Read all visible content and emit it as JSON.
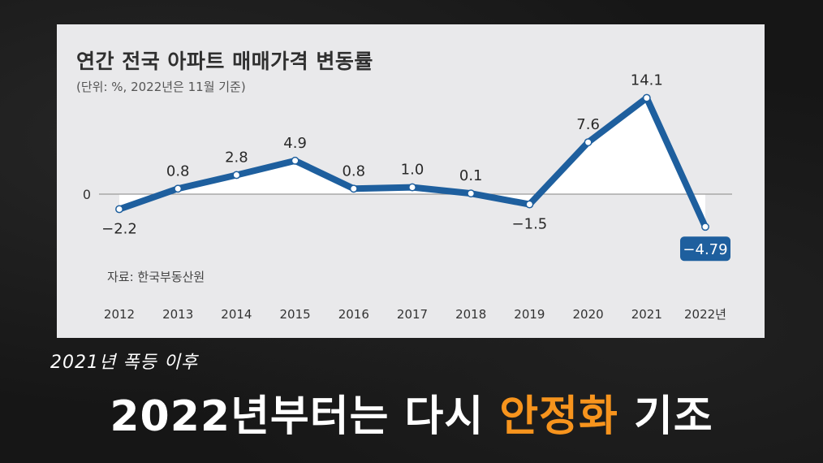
{
  "chart_data": {
    "type": "line",
    "title": "연간 전국 아파트 매매가격 변동률",
    "subtitle": "(단위: %, 2022년은 11월 기준)",
    "source": "자료: 한국부동산원",
    "categories": [
      "2012",
      "2013",
      "2014",
      "2015",
      "2016",
      "2017",
      "2018",
      "2019",
      "2020",
      "2021",
      "2022년"
    ],
    "values": [
      -2.2,
      0.8,
      2.8,
      4.9,
      0.8,
      1.0,
      0.1,
      -1.5,
      7.6,
      14.1,
      -4.79
    ],
    "value_labels": [
      "−2.2",
      "0.8",
      "2.8",
      "4.9",
      "0.8",
      "1.0",
      "0.1",
      "−1.5",
      "7.6",
      "14.1",
      "−4.79"
    ],
    "zero_label": "0",
    "highlight_last": true,
    "colors": {
      "line": "#1e5f9e",
      "fill": "#ffffff",
      "highlight_bg": "#1e5f9e"
    }
  },
  "captions": {
    "sub": "2021년 폭등 이후",
    "main_before": "2022년부터는 다시 ",
    "main_highlight": "안정화",
    "main_after": " 기조"
  }
}
